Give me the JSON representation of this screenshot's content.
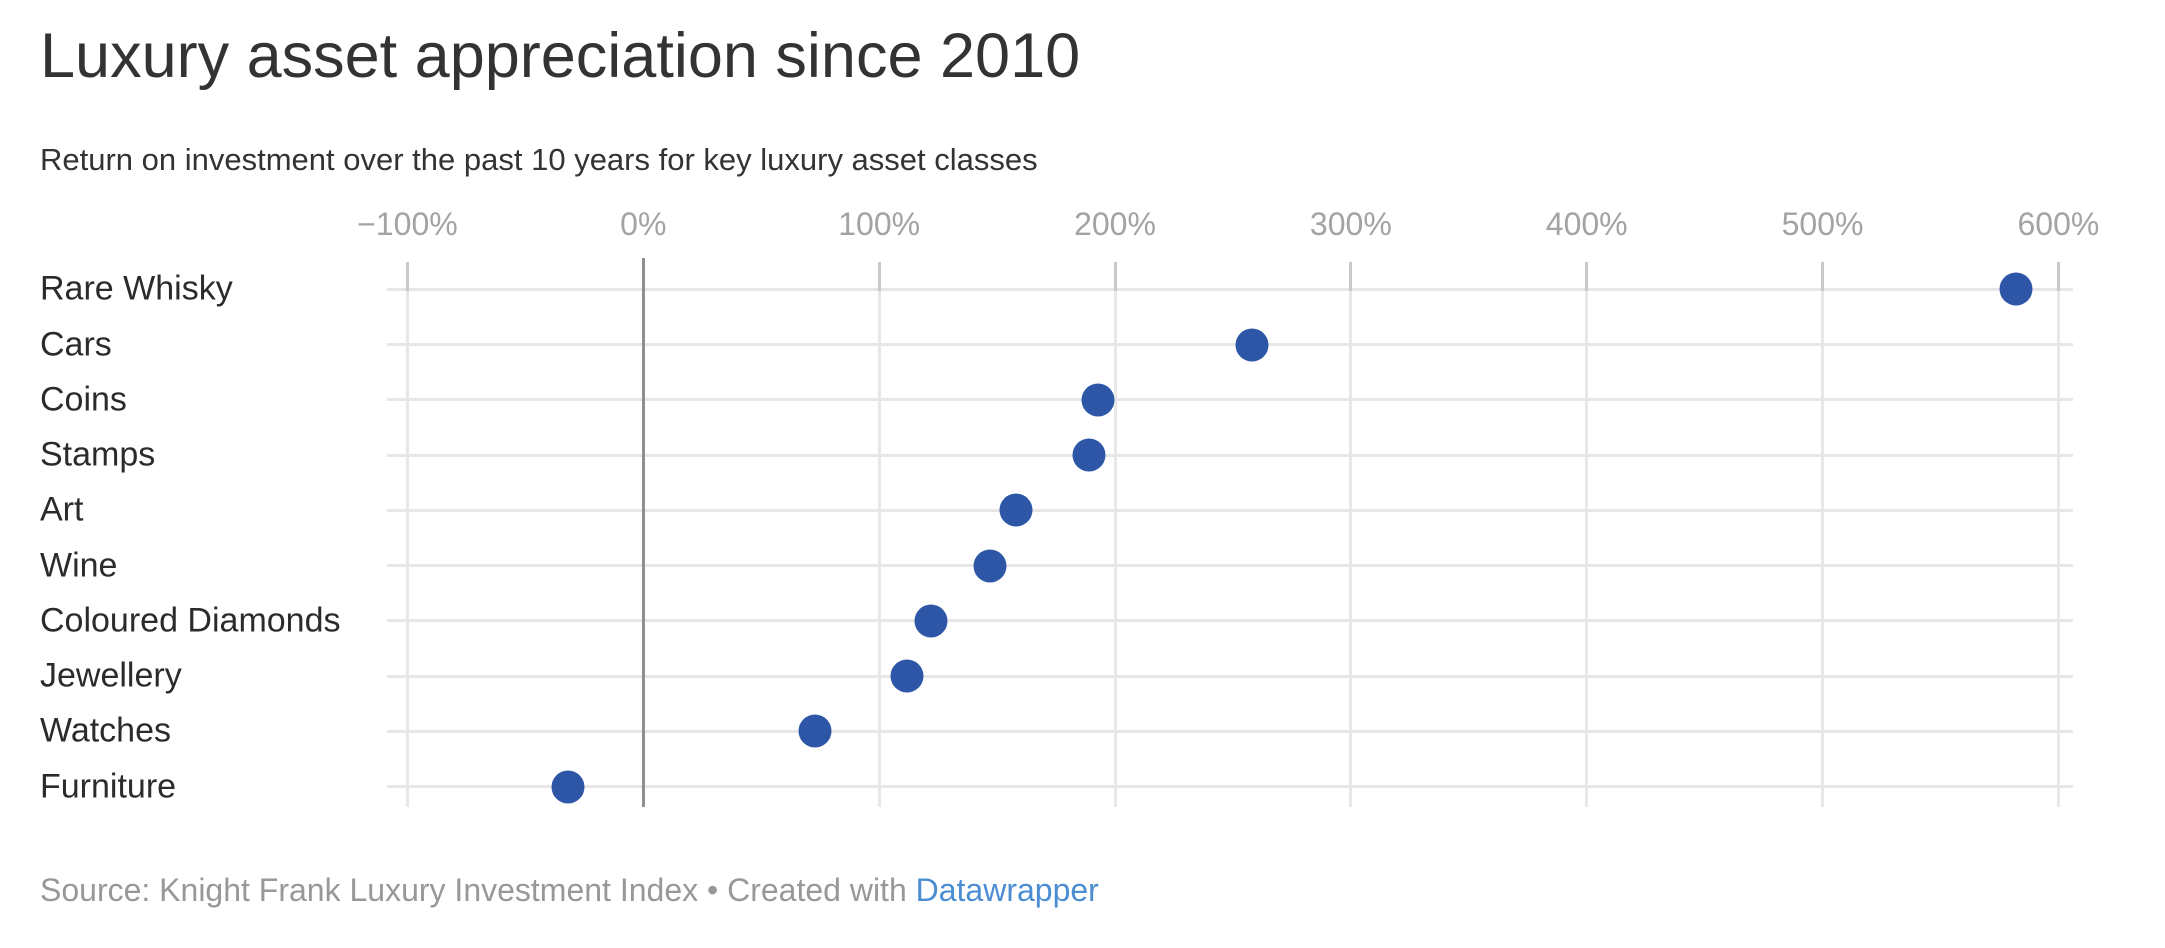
{
  "header": {
    "title": "Luxury asset appreciation since 2010",
    "subtitle": "Return on investment over the past 10 years for key luxury asset classes"
  },
  "chart_data": {
    "type": "scatter",
    "variant": "dot-plot-horizontal",
    "title": "Luxury asset appreciation since 2010",
    "subtitle": "Return on investment over the past 10 years for key luxury asset classes",
    "categories": [
      "Rare Whisky",
      "Cars",
      "Coins",
      "Stamps",
      "Art",
      "Wine",
      "Coloured Diamonds",
      "Jewellery",
      "Watches",
      "Furniture"
    ],
    "values": [
      582,
      258,
      193,
      189,
      158,
      147,
      122,
      112,
      73,
      -32
    ],
    "unit": "%",
    "xlabel": "",
    "ylabel": "",
    "x_axis": {
      "min": -100,
      "max": 600,
      "step": 100
    },
    "x_tick_labels": [
      "−100%",
      "0%",
      "100%",
      "200%",
      "300%",
      "400%",
      "500%",
      "600%"
    ],
    "x_tick_values": [
      -100,
      0,
      100,
      200,
      300,
      400,
      500,
      600
    ],
    "grid": "on",
    "legend": "none",
    "dot_color": "#2e56a7"
  },
  "footer": {
    "source_text": "Source: Knight Frank Luxury Investment Index",
    "separator": "•",
    "created_with": "Created with",
    "link_label": "Datawrapper",
    "link_color": "#4a8dd3"
  }
}
